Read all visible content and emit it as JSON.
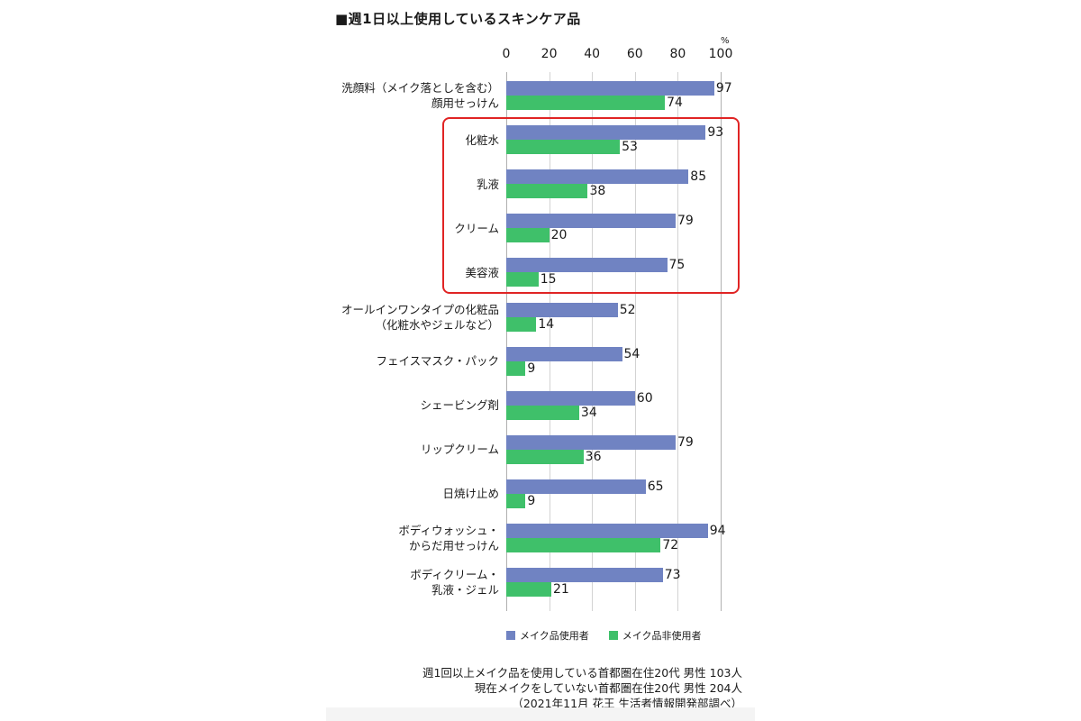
{
  "chart_data": {
    "type": "bar",
    "orientation": "horizontal",
    "title": "■週1日以上使用しているスキンケア品",
    "unit": "%",
    "xlim": [
      0,
      100
    ],
    "ticks": [
      "0",
      "20",
      "40",
      "60",
      "80",
      "100"
    ],
    "categories": [
      [
        "洗顔料（メイク落としを含む）",
        "顔用せっけん"
      ],
      [
        "化粧水"
      ],
      [
        "乳液"
      ],
      [
        "クリーム"
      ],
      [
        "美容液"
      ],
      [
        "オールインワンタイプの化粧品",
        "（化粧水やジェルなど）"
      ],
      [
        "フェイスマスク・パック"
      ],
      [
        "シェービング剤"
      ],
      [
        "リップクリーム"
      ],
      [
        "日焼け止め"
      ],
      [
        "ボディウォッシュ・",
        "からだ用せっけん"
      ],
      [
        "ボディクリーム・",
        "乳液・ジェル"
      ]
    ],
    "series": [
      {
        "name": "メイク品使用者",
        "color": "#7083c2",
        "values": [
          97,
          93,
          85,
          79,
          75,
          52,
          54,
          60,
          79,
          65,
          94,
          73
        ]
      },
      {
        "name": "メイク品非使用者",
        "color": "#3fc06a",
        "values": [
          74,
          53,
          38,
          20,
          15,
          14,
          9,
          34,
          36,
          9,
          72,
          21
        ]
      }
    ],
    "highlight": {
      "categories": [
        "化粧水",
        "乳液",
        "クリーム",
        "美容液"
      ],
      "color": "#e02424"
    },
    "legend_position": "bottom",
    "grid": true
  },
  "notes": [
    "週1回以上メイク品を使用している首都圏在住20代 男性 103人",
    "現在メイクをしていない首都圏在住20代 男性 204人",
    "（2021年11月 花王 生活者情報開発部調べ）"
  ]
}
